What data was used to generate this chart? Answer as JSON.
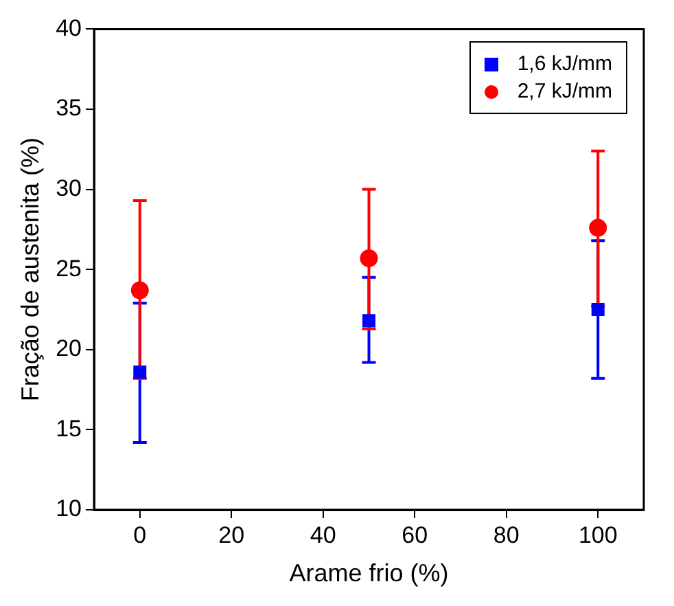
{
  "chart_data": {
    "type": "scatter",
    "xlabel": "Arame frio (%)",
    "ylabel": "Fração de austenita (%)",
    "x": [
      0,
      50,
      100
    ],
    "series": [
      {
        "name": "1,6 kJ/mm",
        "color": "#0000ff",
        "marker": "square",
        "values": [
          18.6,
          21.8,
          22.5
        ],
        "errors": [
          [
            14.2,
            22.9
          ],
          [
            19.2,
            24.5
          ],
          [
            18.2,
            26.8
          ]
        ]
      },
      {
        "name": "2,7 kJ/mm",
        "color": "#ff0000",
        "marker": "circle",
        "values": [
          23.7,
          25.7,
          27.6
        ],
        "errors": [
          [
            18.2,
            29.3
          ],
          [
            21.3,
            30.0
          ],
          [
            22.7,
            32.4
          ]
        ]
      }
    ],
    "xlim": [
      -10,
      110
    ],
    "xticks": [
      0,
      20,
      40,
      60,
      80,
      100
    ],
    "ylim": [
      10,
      40
    ],
    "yticks": [
      10,
      15,
      20,
      25,
      30,
      35,
      40
    ],
    "grid": false,
    "legend": "top right"
  }
}
